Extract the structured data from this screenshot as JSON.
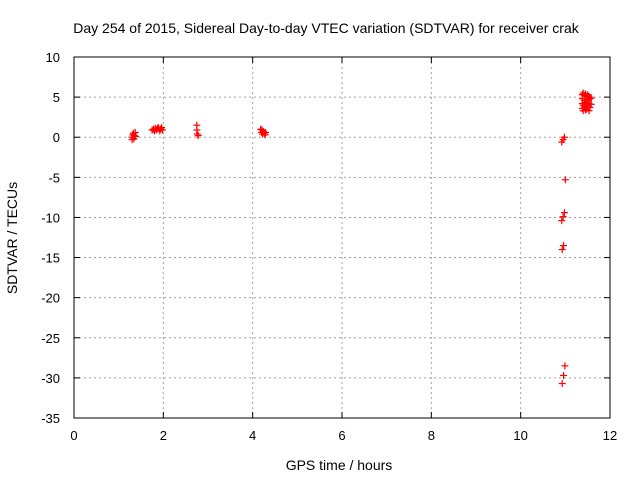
{
  "chart_data": {
    "type": "scatter",
    "title": "Day 254 of 2015, Sidereal Day-to-day VTEC variation (SDTVAR) for receiver crak",
    "xlabel": "GPS time / hours",
    "ylabel": "SDTVAR / TECUs",
    "xlim": [
      0,
      12
    ],
    "ylim": [
      -35,
      10
    ],
    "xticks": [
      "0",
      "2",
      "4",
      "6",
      "8",
      "10",
      "12"
    ],
    "yticks": [
      "10",
      "5",
      "0",
      "-5",
      "-10",
      "-15",
      "-20",
      "-25",
      "-30",
      "-35"
    ],
    "grid": true,
    "marker": "+",
    "point_color": "#ff0000",
    "points": [
      [
        1.3,
        -0.3
      ],
      [
        1.3,
        0.0
      ],
      [
        1.32,
        0.3
      ],
      [
        1.33,
        0.5
      ],
      [
        1.34,
        -0.2
      ],
      [
        1.35,
        0.2
      ],
      [
        1.37,
        0.6
      ],
      [
        1.38,
        0.1
      ],
      [
        1.75,
        0.9
      ],
      [
        1.78,
        1.0
      ],
      [
        1.8,
        0.8
      ],
      [
        1.82,
        1.1
      ],
      [
        1.84,
        0.9
      ],
      [
        1.86,
        1.0
      ],
      [
        1.88,
        1.2
      ],
      [
        1.9,
        1.1
      ],
      [
        1.92,
        0.8
      ],
      [
        1.94,
        1.0
      ],
      [
        1.96,
        1.2
      ],
      [
        1.98,
        0.9
      ],
      [
        2.75,
        1.5
      ],
      [
        2.75,
        0.9
      ],
      [
        2.76,
        0.4
      ],
      [
        2.78,
        0.2
      ],
      [
        4.18,
        1.0
      ],
      [
        4.2,
        0.6
      ],
      [
        4.21,
        0.9
      ],
      [
        4.22,
        0.4
      ],
      [
        4.24,
        0.7
      ],
      [
        4.26,
        0.5
      ],
      [
        4.28,
        0.3
      ],
      [
        4.29,
        0.6
      ],
      [
        10.92,
        -0.6
      ],
      [
        10.95,
        -0.3
      ],
      [
        10.98,
        0.0
      ],
      [
        11.0,
        -5.3
      ],
      [
        10.92,
        -10.4
      ],
      [
        10.95,
        -9.9
      ],
      [
        10.98,
        -9.4
      ],
      [
        10.93,
        -14.0
      ],
      [
        10.96,
        -13.5
      ],
      [
        10.93,
        -30.7
      ],
      [
        10.96,
        -29.7
      ],
      [
        10.99,
        -28.5
      ],
      [
        11.38,
        5.3
      ],
      [
        11.38,
        4.8
      ],
      [
        11.38,
        4.2
      ],
      [
        11.38,
        3.6
      ],
      [
        11.4,
        5.5
      ],
      [
        11.4,
        4.0
      ],
      [
        11.4,
        3.3
      ],
      [
        11.43,
        5.2
      ],
      [
        11.43,
        4.6
      ],
      [
        11.43,
        3.8
      ],
      [
        11.45,
        5.4
      ],
      [
        11.45,
        4.3
      ],
      [
        11.45,
        3.4
      ],
      [
        11.48,
        5.0
      ],
      [
        11.48,
        4.4
      ],
      [
        11.48,
        3.5
      ],
      [
        11.5,
        5.3
      ],
      [
        11.5,
        4.7
      ],
      [
        11.5,
        3.9
      ],
      [
        11.53,
        5.1
      ],
      [
        11.53,
        4.2
      ],
      [
        11.53,
        3.3
      ],
      [
        11.55,
        4.8
      ],
      [
        11.55,
        3.7
      ],
      [
        11.58,
        4.9
      ],
      [
        11.58,
        4.1
      ]
    ]
  }
}
